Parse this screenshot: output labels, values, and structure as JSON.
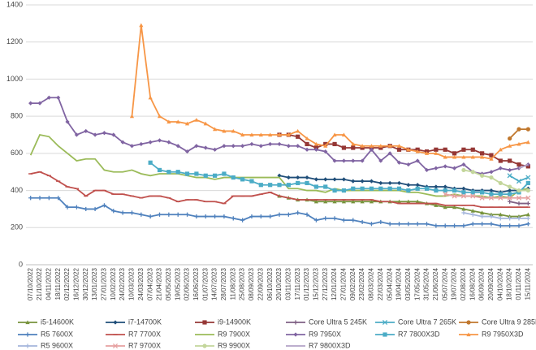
{
  "chart_data": {
    "type": "line",
    "categories": [
      "07/10/2022",
      "21/10/2022",
      "04/11/2022",
      "18/11/2022",
      "02/12/2022",
      "16/12/2022",
      "30/12/2022",
      "13/01/2023",
      "27/01/2023",
      "10/02/2023",
      "24/02/2023",
      "10/03/2023",
      "24/03/2023",
      "07/04/2023",
      "21/04/2023",
      "05/05/2023",
      "19/05/2023",
      "02/06/2023",
      "16/06/2023",
      "01/07/2023",
      "14/07/2023",
      "28/07/2023",
      "11/08/2023",
      "25/08/2023",
      "08/09/2023",
      "22/09/2023",
      "06/10/2023",
      "20/10/2023",
      "03/11/2023",
      "17/11/2023",
      "01/12/2023",
      "15/12/2023",
      "27/12/2023",
      "12/01/2024",
      "27/01/2024",
      "09/02/2024",
      "23/02/2024",
      "08/03/2024",
      "22/03/2024",
      "05/04/2024",
      "19/04/2024",
      "03/05/2024",
      "17/05/2024",
      "31/05/2024",
      "21/06/2024",
      "05/07/2024",
      "19/07/2024",
      "02/08/2024",
      "16/08/2024",
      "06/09/2024",
      "20/09/2024",
      "04/10/2024",
      "18/10/2024",
      "01/11/2024",
      "15/11/2024"
    ],
    "ylim": [
      0,
      1400
    ],
    "yticks": [
      0,
      200,
      400,
      600,
      800,
      1000,
      1200,
      1400
    ],
    "grid": true,
    "series": [
      {
        "name": "i5-14600K",
        "color": "#77933c",
        "marker": "triangle",
        "values": [
          null,
          null,
          null,
          null,
          null,
          null,
          null,
          null,
          null,
          null,
          null,
          null,
          null,
          null,
          null,
          null,
          null,
          null,
          null,
          null,
          null,
          null,
          null,
          null,
          null,
          null,
          null,
          370,
          360,
          350,
          350,
          340,
          340,
          340,
          340,
          340,
          340,
          340,
          340,
          340,
          340,
          340,
          340,
          330,
          320,
          310,
          310,
          300,
          290,
          280,
          270,
          270,
          260,
          260,
          270
        ]
      },
      {
        "name": "i7-14700K",
        "color": "#1f4e79",
        "marker": "diamond",
        "values": [
          null,
          null,
          null,
          null,
          null,
          null,
          null,
          null,
          null,
          null,
          null,
          null,
          null,
          null,
          null,
          null,
          null,
          null,
          null,
          null,
          null,
          null,
          null,
          null,
          null,
          null,
          null,
          480,
          470,
          470,
          470,
          460,
          460,
          460,
          460,
          450,
          450,
          450,
          440,
          440,
          440,
          430,
          430,
          420,
          420,
          420,
          410,
          410,
          400,
          400,
          400,
          390,
          400,
          400,
          410
        ]
      },
      {
        "name": "i9-14900K",
        "color": "#953735",
        "marker": "square",
        "values": [
          null,
          null,
          null,
          null,
          null,
          null,
          null,
          null,
          null,
          null,
          null,
          null,
          null,
          null,
          null,
          null,
          null,
          null,
          null,
          null,
          null,
          null,
          null,
          null,
          null,
          null,
          null,
          700,
          700,
          690,
          650,
          630,
          650,
          650,
          630,
          630,
          630,
          630,
          630,
          640,
          620,
          620,
          620,
          610,
          620,
          620,
          600,
          620,
          620,
          600,
          590,
          560,
          560,
          540,
          530
        ]
      },
      {
        "name": "Core Ultra 5 245K",
        "color": "#7f6084",
        "marker": "plus",
        "values": [
          null,
          null,
          null,
          null,
          null,
          null,
          null,
          null,
          null,
          null,
          null,
          null,
          null,
          null,
          null,
          null,
          null,
          null,
          null,
          null,
          null,
          null,
          null,
          null,
          null,
          null,
          null,
          null,
          null,
          null,
          null,
          null,
          null,
          null,
          null,
          null,
          null,
          null,
          null,
          null,
          null,
          null,
          null,
          null,
          null,
          null,
          null,
          null,
          null,
          null,
          null,
          null,
          340,
          330,
          330
        ]
      },
      {
        "name": "Core Ultra 7 265K",
        "color": "#4bacc6",
        "marker": "x",
        "values": [
          null,
          null,
          null,
          null,
          null,
          null,
          null,
          null,
          null,
          null,
          null,
          null,
          null,
          null,
          null,
          null,
          null,
          null,
          null,
          null,
          null,
          null,
          null,
          null,
          null,
          null,
          null,
          null,
          null,
          null,
          null,
          null,
          null,
          null,
          null,
          null,
          null,
          null,
          null,
          null,
          null,
          null,
          null,
          null,
          null,
          null,
          null,
          null,
          null,
          null,
          null,
          null,
          480,
          450,
          470
        ]
      },
      {
        "name": "Core Ultra 9 285K",
        "color": "#c0772d",
        "marker": "circle",
        "values": [
          null,
          null,
          null,
          null,
          null,
          null,
          null,
          null,
          null,
          null,
          null,
          null,
          null,
          null,
          null,
          null,
          null,
          null,
          null,
          null,
          null,
          null,
          null,
          null,
          null,
          null,
          null,
          null,
          null,
          null,
          null,
          null,
          null,
          null,
          null,
          null,
          null,
          null,
          null,
          null,
          null,
          null,
          null,
          null,
          null,
          null,
          null,
          null,
          null,
          null,
          null,
          null,
          680,
          730,
          730
        ]
      },
      {
        "name": "R5 7600X",
        "color": "#4f81bd",
        "marker": "plus",
        "values": [
          360,
          360,
          360,
          360,
          310,
          310,
          300,
          300,
          320,
          290,
          280,
          280,
          270,
          260,
          270,
          270,
          270,
          270,
          260,
          260,
          260,
          260,
          250,
          240,
          260,
          260,
          260,
          270,
          270,
          280,
          270,
          240,
          250,
          250,
          240,
          240,
          230,
          220,
          230,
          220,
          220,
          220,
          220,
          220,
          210,
          210,
          210,
          210,
          220,
          220,
          220,
          210,
          210,
          210,
          220
        ]
      },
      {
        "name": "R7 7700X",
        "color": "#c0504d",
        "marker": "dash",
        "values": [
          490,
          500,
          480,
          450,
          420,
          410,
          370,
          400,
          400,
          380,
          380,
          370,
          360,
          370,
          370,
          360,
          340,
          350,
          350,
          340,
          340,
          330,
          370,
          370,
          370,
          380,
          390,
          370,
          360,
          350,
          350,
          350,
          350,
          350,
          350,
          350,
          350,
          350,
          340,
          340,
          330,
          330,
          330,
          330,
          330,
          320,
          320,
          320,
          320,
          310,
          310,
          310,
          310,
          310,
          310
        ]
      },
      {
        "name": "R9 7900X",
        "color": "#9bbb59",
        "marker": "none",
        "values": [
          590,
          700,
          690,
          640,
          600,
          560,
          570,
          570,
          510,
          500,
          500,
          510,
          490,
          480,
          490,
          490,
          490,
          480,
          470,
          470,
          460,
          470,
          470,
          470,
          470,
          470,
          470,
          470,
          410,
          410,
          400,
          400,
          390,
          410,
          400,
          400,
          400,
          400,
          400,
          400,
          400,
          390,
          390,
          380,
          370,
          370,
          380,
          370,
          370,
          370,
          360,
          370,
          360,
          400,
          410
        ]
      },
      {
        "name": "R9 7950X",
        "color": "#8064a2",
        "marker": "diamond",
        "values": [
          870,
          870,
          900,
          900,
          770,
          700,
          720,
          700,
          710,
          700,
          660,
          640,
          650,
          660,
          670,
          660,
          640,
          610,
          640,
          630,
          620,
          640,
          640,
          640,
          650,
          640,
          650,
          650,
          640,
          640,
          620,
          620,
          610,
          560,
          560,
          560,
          560,
          620,
          560,
          600,
          550,
          540,
          560,
          510,
          520,
          530,
          520,
          540,
          500,
          490,
          500,
          520,
          510,
          520,
          540
        ]
      },
      {
        "name": "R7 7800X3D",
        "color": "#4bacc6",
        "marker": "square",
        "values": [
          null,
          null,
          null,
          null,
          null,
          null,
          null,
          null,
          null,
          null,
          null,
          null,
          null,
          550,
          510,
          500,
          500,
          490,
          490,
          480,
          480,
          490,
          470,
          460,
          450,
          430,
          430,
          430,
          430,
          440,
          440,
          420,
          420,
          400,
          400,
          410,
          410,
          410,
          410,
          410,
          410,
          400,
          410,
          410,
          400,
          400,
          400,
          390,
          390,
          390,
          380,
          380,
          380,
          390,
          440
        ]
      },
      {
        "name": "R9 7950X3D",
        "color": "#f79646",
        "marker": "triangle",
        "values": [
          null,
          null,
          null,
          null,
          null,
          null,
          null,
          null,
          null,
          null,
          null,
          800,
          1290,
          900,
          800,
          770,
          770,
          760,
          780,
          760,
          730,
          720,
          720,
          700,
          700,
          700,
          700,
          700,
          700,
          720,
          680,
          650,
          640,
          700,
          700,
          650,
          640,
          640,
          640,
          640,
          640,
          620,
          610,
          600,
          600,
          580,
          580,
          580,
          580,
          580,
          570,
          620,
          640,
          650,
          660
        ]
      },
      {
        "name": "R5 9600X",
        "color": "#a5b6dc",
        "marker": "plus",
        "values": [
          null,
          null,
          null,
          null,
          null,
          null,
          null,
          null,
          null,
          null,
          null,
          null,
          null,
          null,
          null,
          null,
          null,
          null,
          null,
          null,
          null,
          null,
          null,
          null,
          null,
          null,
          null,
          null,
          null,
          null,
          null,
          null,
          null,
          null,
          null,
          null,
          null,
          null,
          null,
          null,
          null,
          null,
          null,
          null,
          null,
          null,
          null,
          280,
          270,
          260,
          260,
          250,
          250,
          250,
          250
        ]
      },
      {
        "name": "R7 9700X",
        "color": "#e6a0a0",
        "marker": "x",
        "values": [
          null,
          null,
          null,
          null,
          null,
          null,
          null,
          null,
          null,
          null,
          null,
          null,
          null,
          null,
          null,
          null,
          null,
          null,
          null,
          null,
          null,
          null,
          null,
          null,
          null,
          null,
          null,
          null,
          null,
          null,
          null,
          null,
          null,
          null,
          null,
          null,
          null,
          null,
          null,
          null,
          null,
          null,
          null,
          null,
          null,
          380,
          370,
          370,
          370,
          360,
          360,
          360,
          360,
          360,
          360
        ]
      },
      {
        "name": "R9 9900X",
        "color": "#c3d69b",
        "marker": "circle",
        "values": [
          null,
          null,
          null,
          null,
          null,
          null,
          null,
          null,
          null,
          null,
          null,
          null,
          null,
          null,
          null,
          null,
          null,
          null,
          null,
          null,
          null,
          null,
          null,
          null,
          null,
          null,
          null,
          null,
          null,
          null,
          null,
          null,
          null,
          null,
          null,
          null,
          null,
          null,
          null,
          null,
          null,
          null,
          null,
          null,
          null,
          null,
          null,
          510,
          500,
          480,
          470,
          440,
          420,
          400,
          400
        ]
      },
      {
        "name": "R7 9800X3D",
        "color": "#b3a2c7",
        "marker": "none",
        "values": [
          null,
          null,
          null,
          null,
          null,
          null,
          null,
          null,
          null,
          null,
          null,
          null,
          null,
          null,
          null,
          null,
          null,
          null,
          null,
          null,
          null,
          null,
          null,
          null,
          null,
          null,
          null,
          null,
          null,
          null,
          null,
          null,
          null,
          null,
          null,
          null,
          null,
          null,
          null,
          null,
          null,
          null,
          null,
          null,
          null,
          null,
          null,
          null,
          null,
          null,
          null,
          null,
          null,
          520,
          540
        ]
      }
    ]
  }
}
